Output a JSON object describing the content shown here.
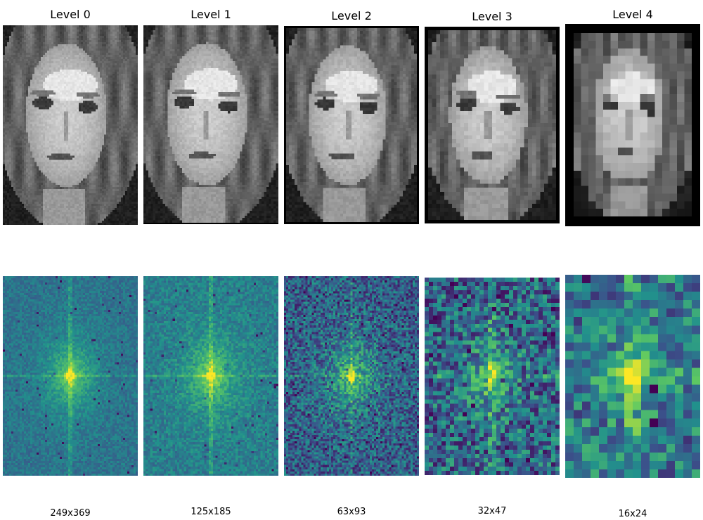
{
  "levels": [
    {
      "title": "Level 0",
      "size": "249x369"
    },
    {
      "title": "Level 1",
      "size": "125x185"
    },
    {
      "title": "Level 2",
      "size": "63x93"
    },
    {
      "title": "Level 3",
      "size": "32x47"
    },
    {
      "title": "Level 4",
      "size": "16x24"
    }
  ],
  "colors": {
    "background": "#ffffff",
    "photo_frame": "#000000",
    "spectrum_low": "#440154",
    "spectrum_mid": "#21908d",
    "spectrum_peak": "#fde725"
  }
}
